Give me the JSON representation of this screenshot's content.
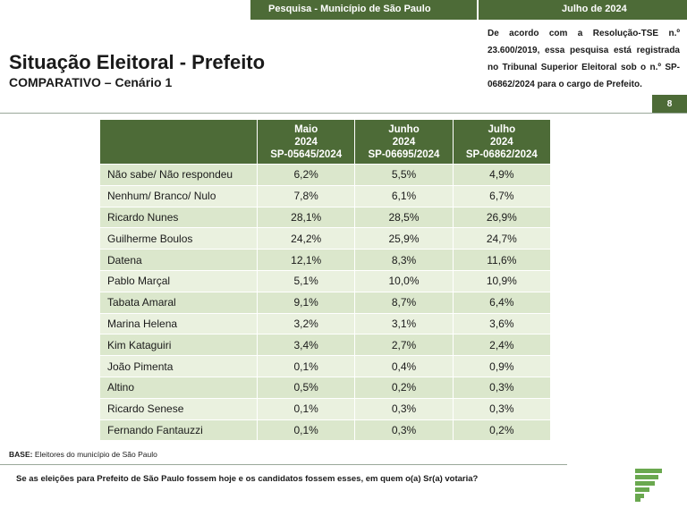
{
  "header": {
    "survey": "Pesquisa - Município de São Paulo",
    "date": "Julho de 2024"
  },
  "title": "Situação Eleitoral - Prefeito",
  "subtitle": "COMPARATIVO – Cenário 1",
  "legal_note": "De acordo com a Resolução-TSE n.º 23.600/2019, essa pesquisa está registrada no Tribunal Superior Eleitoral sob o n.º SP-06862/2024 para o cargo de Prefeito.",
  "page_number": "8",
  "table": {
    "columns": [
      {
        "month": "Maio",
        "year": "2024",
        "code": "SP-05645/2024"
      },
      {
        "month": "Junho",
        "year": "2024",
        "code": "SP-06695/2024"
      },
      {
        "month": "Julho",
        "year": "2024",
        "code": "SP-06862/2024"
      }
    ],
    "rows": [
      {
        "name": "Não sabe/ Não respondeu",
        "values": [
          "6,2%",
          "5,5%",
          "4,9%"
        ]
      },
      {
        "name": "Nenhum/ Branco/ Nulo",
        "values": [
          "7,8%",
          "6,1%",
          "6,7%"
        ]
      },
      {
        "name": "Ricardo Nunes",
        "values": [
          "28,1%",
          "28,5%",
          "26,9%"
        ]
      },
      {
        "name": "Guilherme Boulos",
        "values": [
          "24,2%",
          "25,9%",
          "24,7%"
        ]
      },
      {
        "name": "Datena",
        "values": [
          "12,1%",
          "8,3%",
          "11,6%"
        ]
      },
      {
        "name": "Pablo Marçal",
        "values": [
          "5,1%",
          "10,0%",
          "10,9%"
        ]
      },
      {
        "name": "Tabata Amaral",
        "values": [
          "9,1%",
          "8,7%",
          "6,4%"
        ]
      },
      {
        "name": "Marina Helena",
        "values": [
          "3,2%",
          "3,1%",
          "3,6%"
        ]
      },
      {
        "name": "Kim Kataguiri",
        "values": [
          "3,4%",
          "2,7%",
          "2,4%"
        ]
      },
      {
        "name": "João Pimenta",
        "values": [
          "0,1%",
          "0,4%",
          "0,9%"
        ]
      },
      {
        "name": "Altino",
        "values": [
          "0,5%",
          "0,2%",
          "0,3%"
        ]
      },
      {
        "name": "Ricardo Senese",
        "values": [
          "0,1%",
          "0,3%",
          "0,3%"
        ]
      },
      {
        "name": "Fernando Fantauzzi",
        "values": [
          "0,1%",
          "0,3%",
          "0,2%"
        ]
      }
    ]
  },
  "base": {
    "label": "BASE:",
    "text": "Eleitores do município de São Paulo"
  },
  "question": "Se as eleições para Prefeito de São Paulo fossem hoje e os candidatos fossem esses, em quem o(a) Sr(a) votaria?",
  "colors": {
    "brand_green": "#4d6b37",
    "row_light": "#eaf1df",
    "row_dark": "#dbe7cc",
    "logo_green": "#6aa84f"
  },
  "logo": "stacked-bars-logo-icon"
}
